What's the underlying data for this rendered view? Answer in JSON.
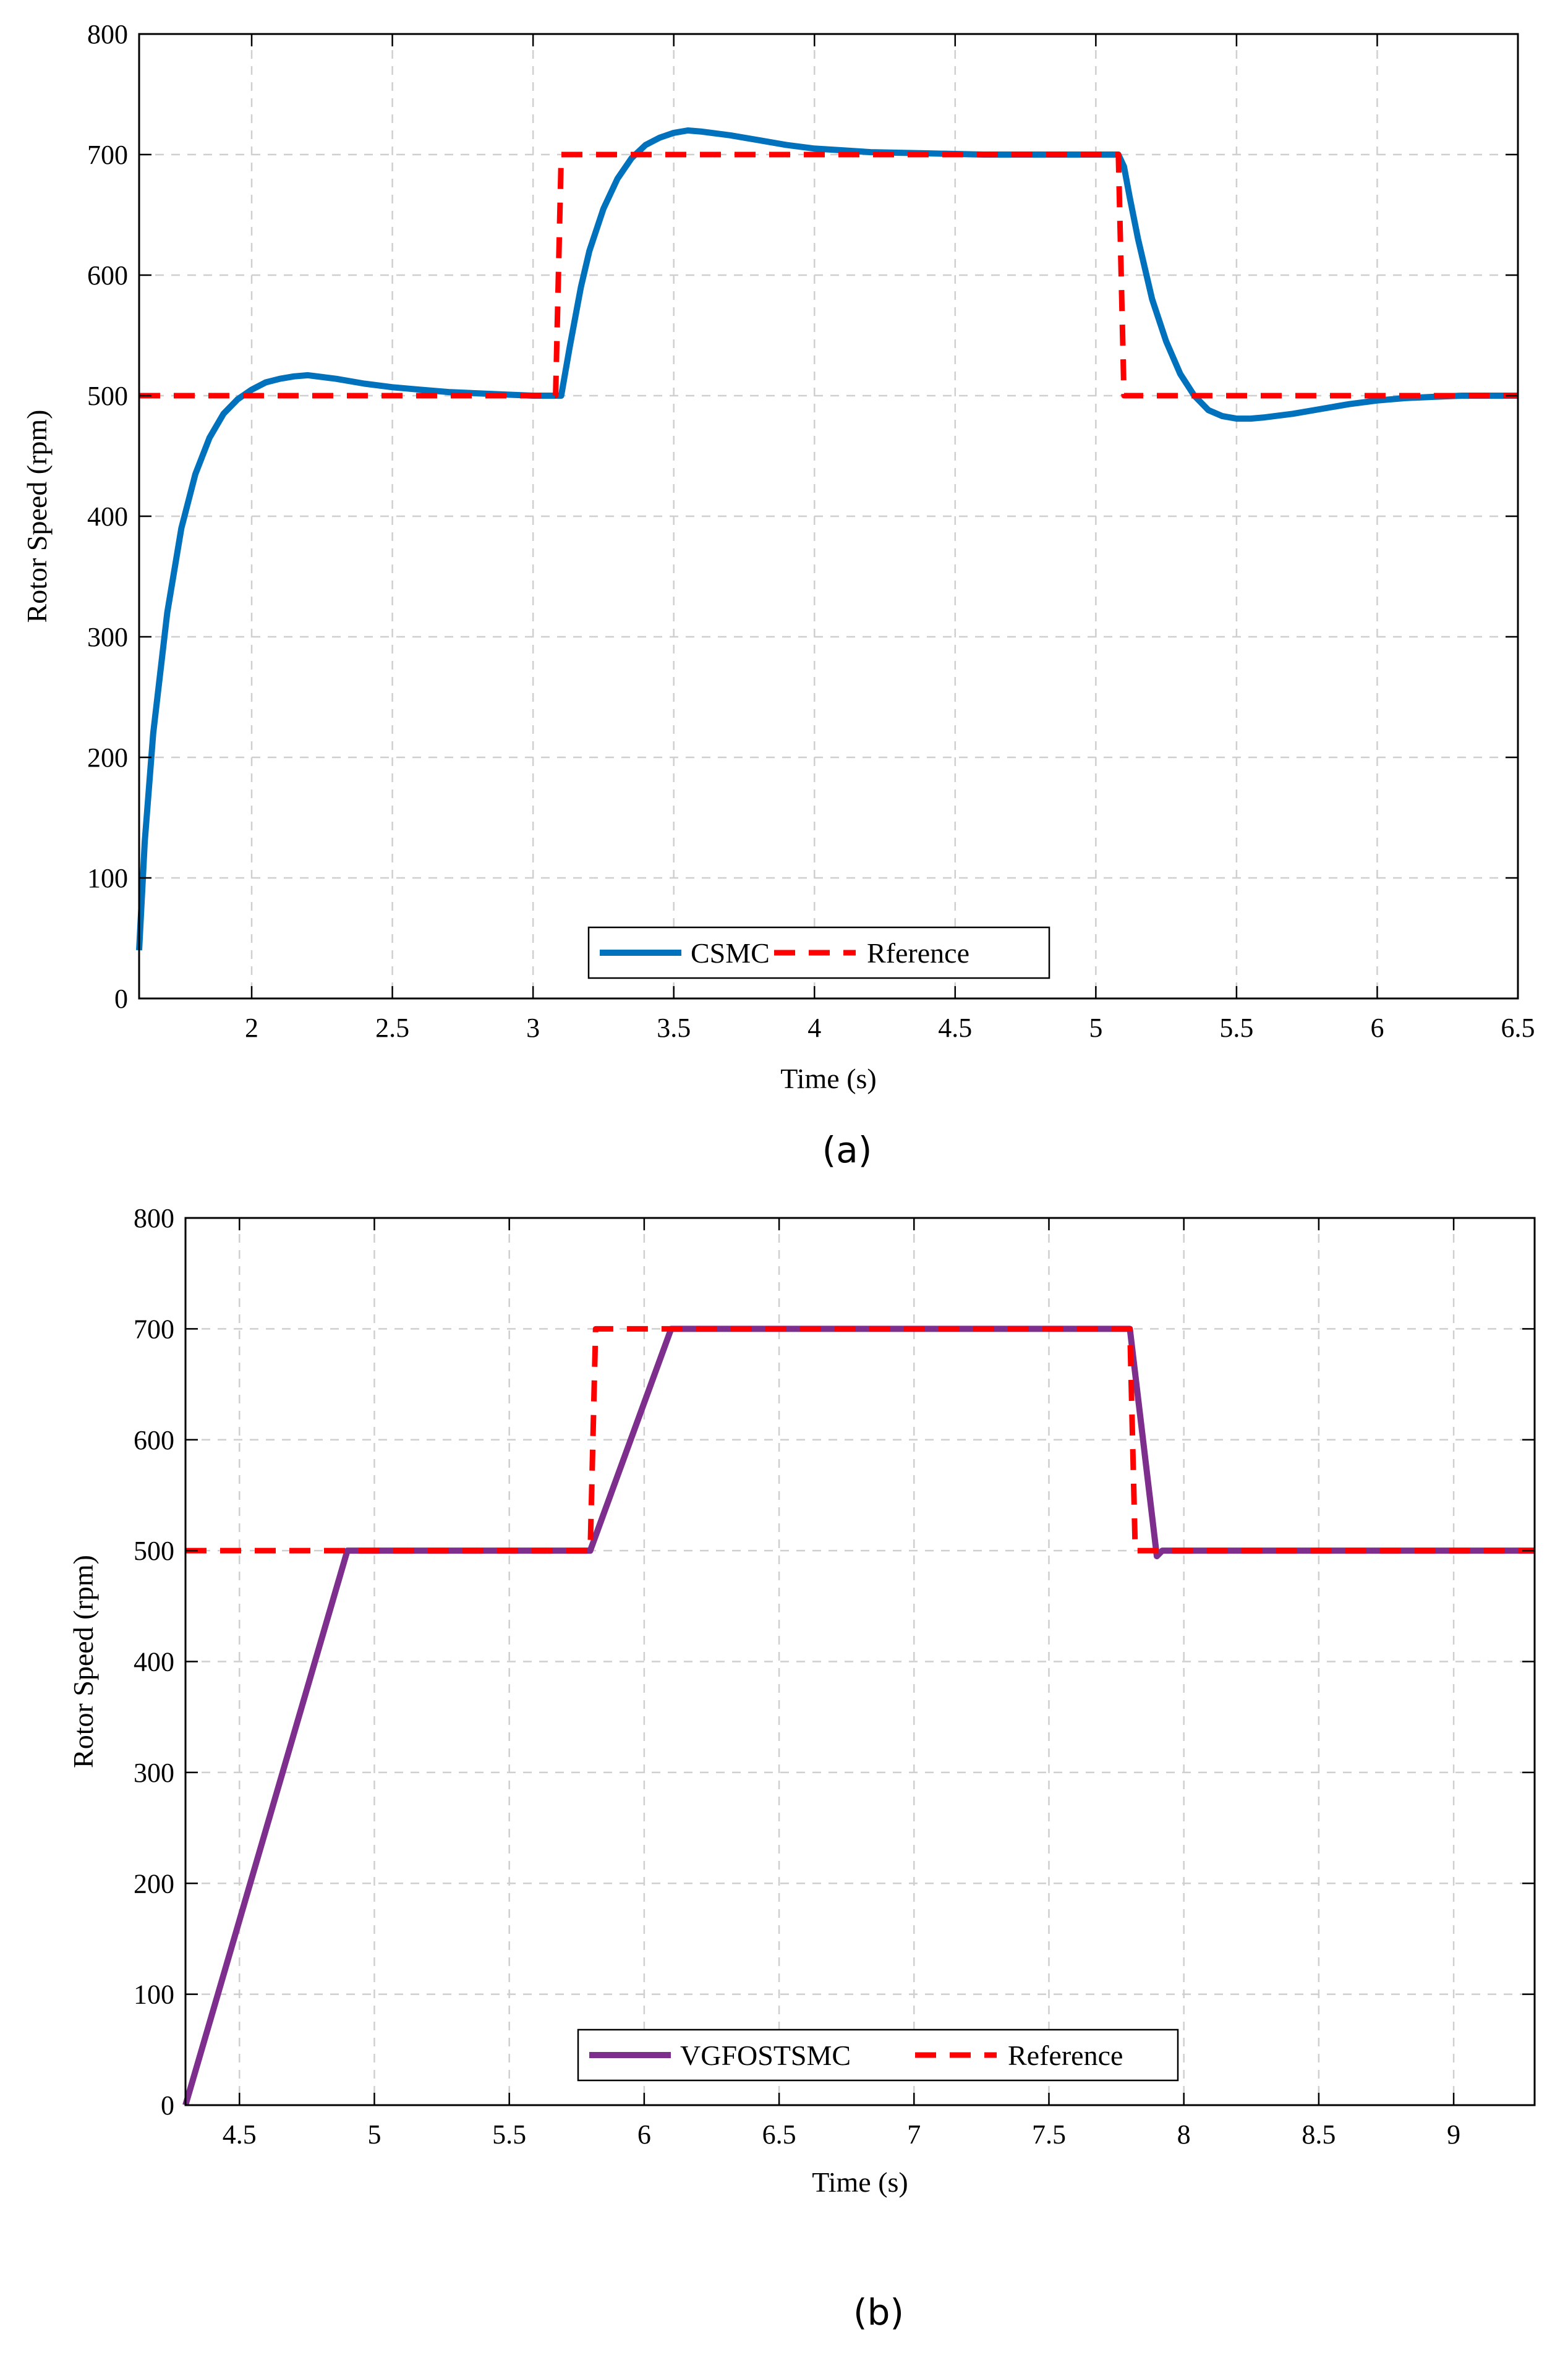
{
  "chart_data": [
    {
      "type": "line",
      "panel_label": "(a)",
      "xlabel": "Time (s)",
      "ylabel": "Rotor Speed (rpm)",
      "xlim": [
        1.6,
        6.5
      ],
      "ylim": [
        0,
        800
      ],
      "xticks": [
        2,
        2.5,
        3,
        3.5,
        4,
        4.5,
        5,
        5.5,
        6,
        6.5
      ],
      "yticks": [
        0,
        100,
        200,
        300,
        400,
        500,
        600,
        700,
        800
      ],
      "grid": true,
      "legend_position": "bottom-center",
      "series": [
        {
          "name": "CSMC",
          "color": "#0072BD",
          "style": "solid",
          "x": [
            1.6,
            1.62,
            1.65,
            1.7,
            1.75,
            1.8,
            1.85,
            1.9,
            1.95,
            2.0,
            2.05,
            2.1,
            2.15,
            2.2,
            2.3,
            2.4,
            2.5,
            2.6,
            2.7,
            2.8,
            2.9,
            3.0,
            3.05,
            3.08,
            3.1,
            3.13,
            3.17,
            3.2,
            3.25,
            3.3,
            3.35,
            3.4,
            3.45,
            3.5,
            3.55,
            3.6,
            3.7,
            3.8,
            3.9,
            4.0,
            4.2,
            4.4,
            4.6,
            4.8,
            5.0,
            5.08,
            5.1,
            5.12,
            5.15,
            5.2,
            5.25,
            5.3,
            5.35,
            5.4,
            5.45,
            5.5,
            5.55,
            5.6,
            5.7,
            5.8,
            5.9,
            6.0,
            6.1,
            6.2,
            6.3,
            6.4,
            6.5
          ],
          "y": [
            40,
            130,
            220,
            320,
            390,
            435,
            465,
            485,
            497,
            505,
            511,
            514,
            516,
            517,
            514,
            510,
            507,
            505,
            503,
            502,
            501,
            500,
            500,
            500,
            500,
            540,
            590,
            620,
            655,
            680,
            697,
            708,
            714,
            718,
            720,
            719,
            716,
            712,
            708,
            705,
            702,
            701,
            700,
            700,
            700,
            700,
            690,
            665,
            630,
            580,
            545,
            518,
            500,
            488,
            483,
            481,
            481,
            482,
            485,
            489,
            493,
            496,
            498,
            499,
            500,
            500,
            500
          ]
        },
        {
          "name": "Rference",
          "color": "#FF0000",
          "style": "dashed",
          "x": [
            1.6,
            3.08,
            3.1,
            5.08,
            5.1,
            6.5
          ],
          "y": [
            500,
            500,
            700,
            700,
            500,
            500
          ]
        }
      ]
    },
    {
      "type": "line",
      "panel_label": "(b)",
      "xlabel": "Time (s)",
      "ylabel": "Rotor Speed (rpm)",
      "xlim": [
        4.3,
        9.3
      ],
      "ylim": [
        0,
        800
      ],
      "xticks": [
        4.5,
        5,
        5.5,
        6,
        6.5,
        7,
        7.5,
        8,
        8.5,
        9
      ],
      "yticks": [
        0,
        100,
        200,
        300,
        400,
        500,
        600,
        700,
        800
      ],
      "grid": true,
      "legend_position": "bottom-center",
      "series": [
        {
          "name": "VGFOSTSMC",
          "color": "#7E2F8E",
          "style": "solid",
          "x": [
            4.3,
            4.9,
            5.0,
            5.5,
            5.8,
            6.1,
            6.5,
            7.0,
            7.5,
            7.8,
            7.9,
            7.92,
            8.0,
            8.5,
            9.0,
            9.3
          ],
          "y": [
            0,
            500,
            500,
            500,
            500,
            700,
            700,
            700,
            700,
            700,
            495,
            500,
            500,
            500,
            500,
            500
          ]
        },
        {
          "name": "Reference",
          "color": "#FF0000",
          "style": "dashed",
          "x": [
            4.3,
            5.8,
            5.82,
            7.8,
            7.82,
            9.3
          ],
          "y": [
            500,
            500,
            700,
            700,
            500,
            500
          ]
        }
      ]
    }
  ]
}
